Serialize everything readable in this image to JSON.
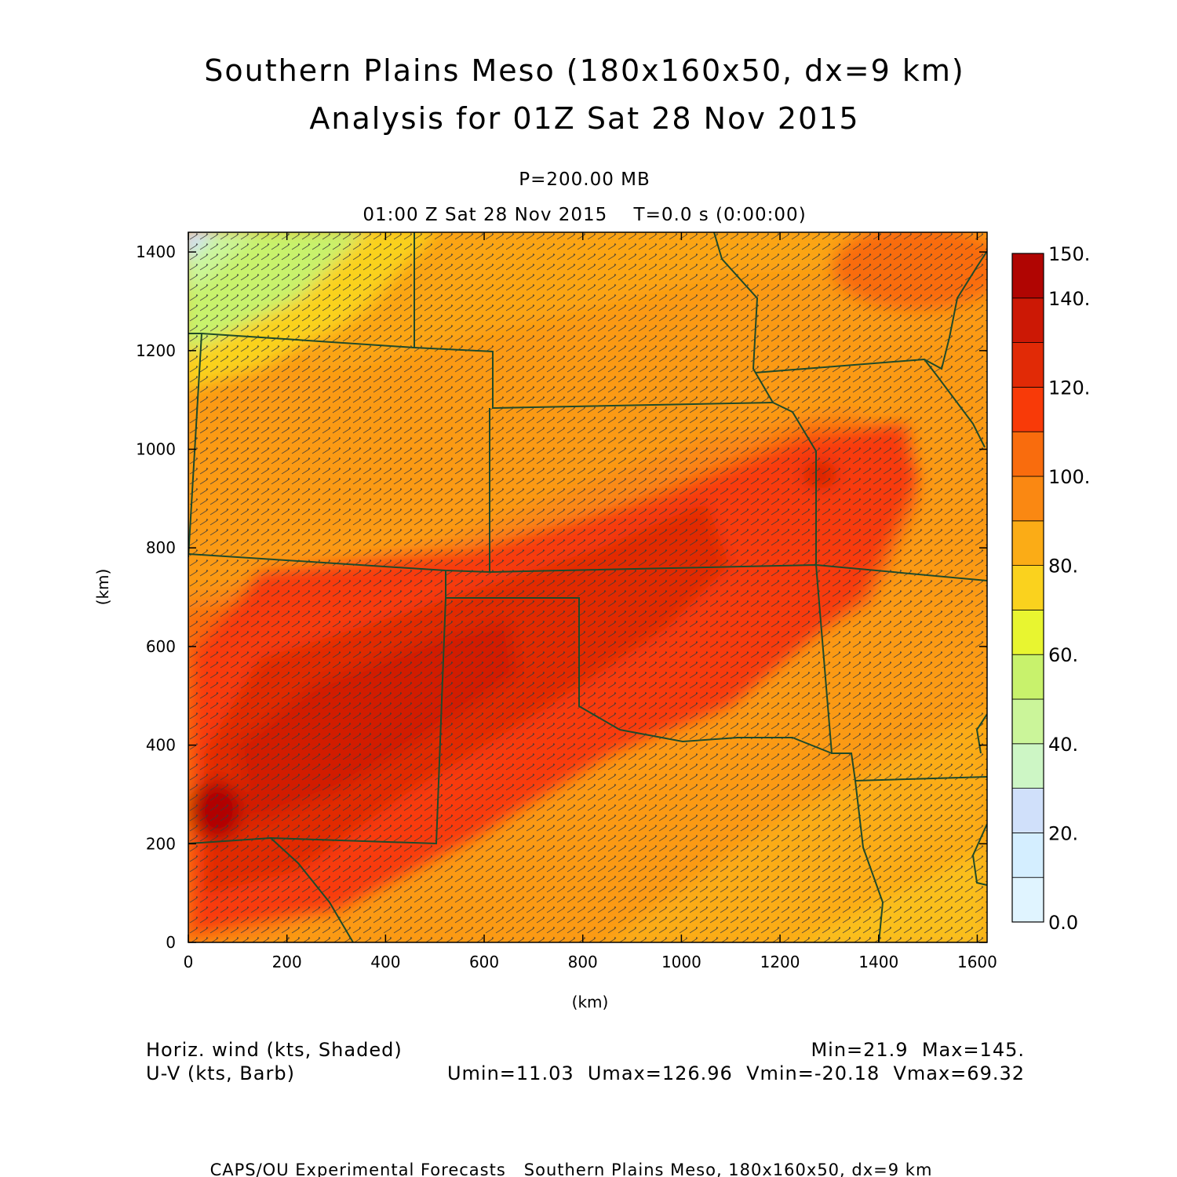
{
  "header": {
    "title_line1": "Southern Plains Meso (180x160x50, dx=9 km)",
    "title_line2": "Analysis for 01Z Sat 28 Nov 2015",
    "level": "P=200.00 MB",
    "time": "01:00 Z Sat 28 Nov 2015    T=0.0 s (0:00:00)"
  },
  "chart_data": {
    "type": "heatmap",
    "xlabel": "(km)",
    "ylabel": "(km)",
    "xlim": [
      0,
      1620
    ],
    "ylim": [
      0,
      1440
    ],
    "x_ticks": [
      0,
      200,
      400,
      600,
      800,
      1000,
      1200,
      1400,
      1600
    ],
    "y_ticks": [
      0,
      200,
      400,
      600,
      800,
      1000,
      1200,
      1400
    ],
    "x_tick_labels": [
      "0",
      "200",
      "400",
      "600",
      "800",
      "1000",
      "1200",
      "1400",
      "1600"
    ],
    "y_tick_labels": [
      "0",
      "200",
      "400",
      "600",
      "800",
      "1000",
      "1200",
      "1400"
    ],
    "colorbar": {
      "min": 0,
      "max": 150,
      "step": 10,
      "labels": [
        {
          "value": 0,
          "text": "0.0"
        },
        {
          "value": 20,
          "text": "20."
        },
        {
          "value": 40,
          "text": "40."
        },
        {
          "value": 60,
          "text": "60."
        },
        {
          "value": 80,
          "text": "80."
        },
        {
          "value": 100,
          "text": "100."
        },
        {
          "value": 120,
          "text": "120."
        },
        {
          "value": 140,
          "text": "140."
        },
        {
          "value": 150,
          "text": "150."
        }
      ],
      "colors": [
        "#e0f4ff",
        "#d4eeff",
        "#d0e0fa",
        "#cdf6c5",
        "#cbf59a",
        "#c8f26c",
        "#e8f530",
        "#fad21e",
        "#fbac16",
        "#fa8812",
        "#f96c0d",
        "#f83a08",
        "#e12a06",
        "#cc1805",
        "#b00502"
      ]
    },
    "wind_speed_field": [
      {
        "x": 40,
        "y": 1420,
        "value": 25
      },
      {
        "x": 150,
        "y": 1380,
        "value": 45
      },
      {
        "x": 280,
        "y": 1360,
        "value": 60
      },
      {
        "x": 420,
        "y": 1400,
        "value": 72
      },
      {
        "x": 100,
        "y": 1200,
        "value": 68
      },
      {
        "x": 300,
        "y": 1200,
        "value": 80
      },
      {
        "x": 60,
        "y": 1000,
        "value": 85
      },
      {
        "x": 600,
        "y": 1200,
        "value": 92
      },
      {
        "x": 1400,
        "y": 1380,
        "value": 108
      },
      {
        "x": 400,
        "y": 700,
        "value": 120
      },
      {
        "x": 900,
        "y": 800,
        "value": 125
      },
      {
        "x": 1300,
        "y": 950,
        "value": 122
      },
      {
        "x": 500,
        "y": 560,
        "value": 130
      },
      {
        "x": 40,
        "y": 270,
        "value": 145
      },
      {
        "x": 1000,
        "y": 350,
        "value": 100
      },
      {
        "x": 1500,
        "y": 250,
        "value": 88
      },
      {
        "x": 1450,
        "y": 600,
        "value": 100
      }
    ],
    "vector_field": "U-V wind barbs across domain"
  },
  "footer": {
    "field1": "Horiz. wind (kts, Shaded)",
    "field2": "U-V (kts, Barb)",
    "minmax": "Min=21.9  Max=145.",
    "uvminmax": "Umin=11.03  Umax=126.96  Vmin=-20.18  Vmax=69.32",
    "credit": "CAPS/OU Experimental Forecasts   Southern Plains Meso, 180x160x50, dx=9 km"
  }
}
